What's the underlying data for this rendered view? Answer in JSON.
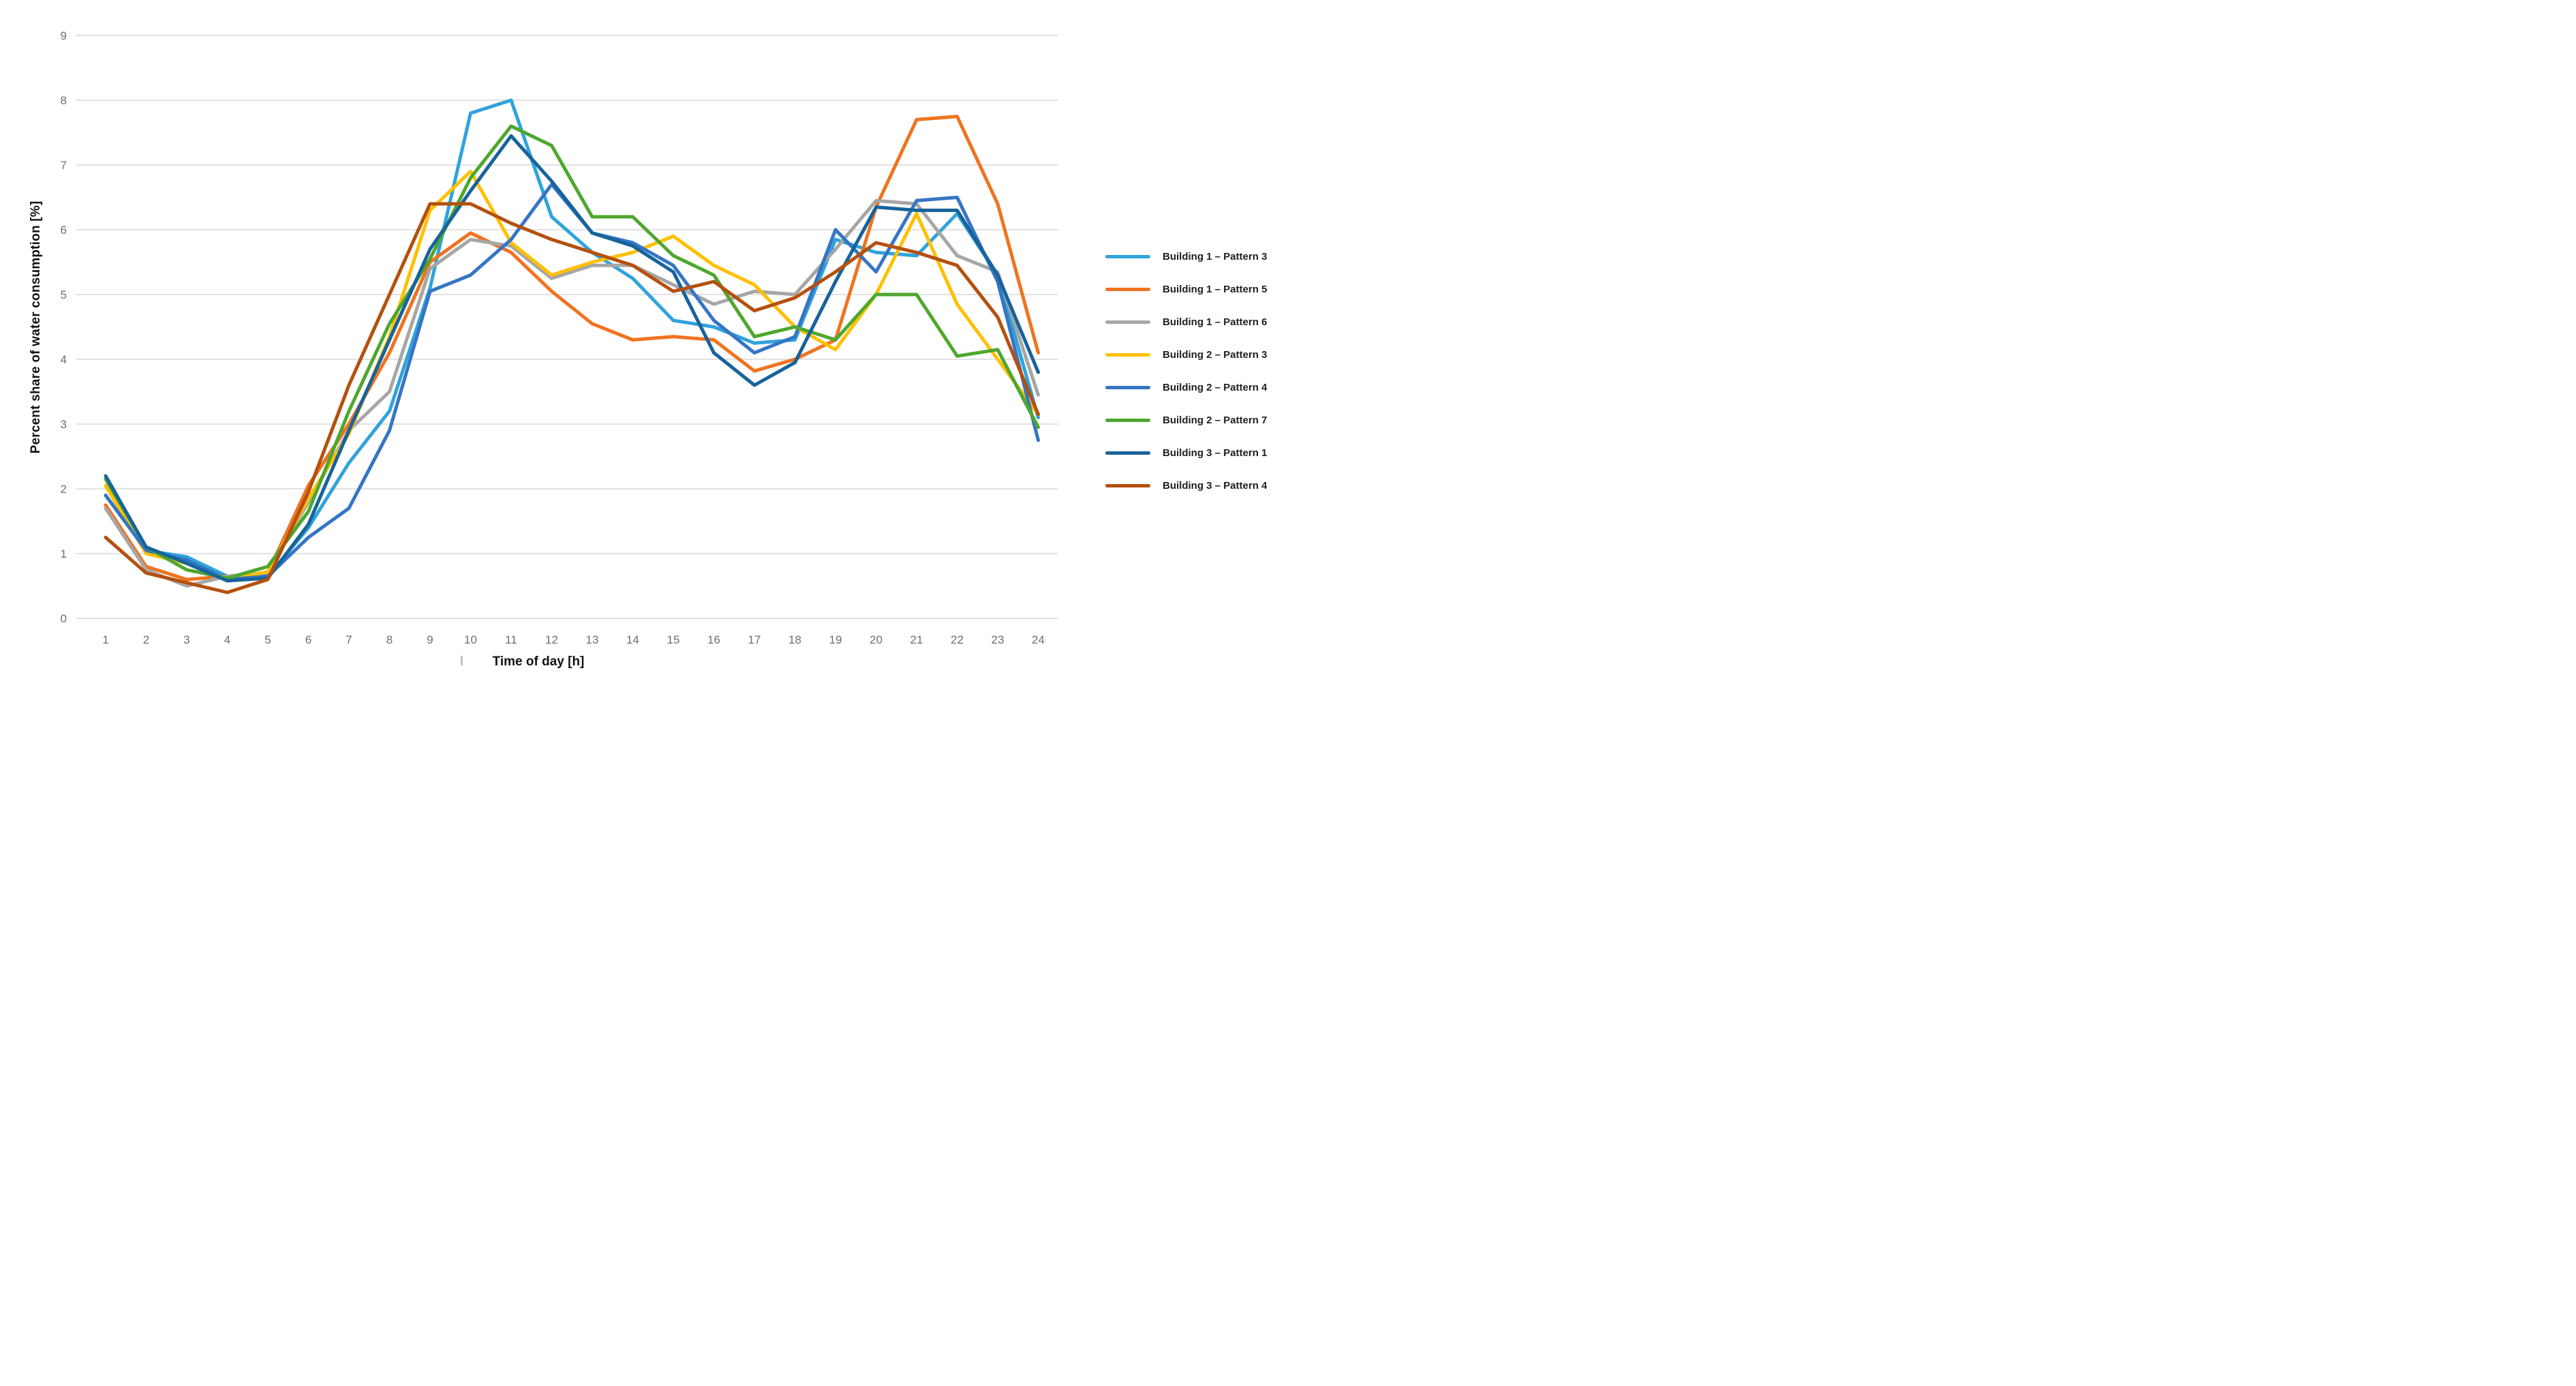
{
  "chart_data": {
    "type": "line",
    "title": "",
    "xlabel": "Time of day [h]",
    "ylabel": "Percent share of water consumption [%]",
    "x": [
      1,
      2,
      3,
      4,
      5,
      6,
      7,
      8,
      9,
      10,
      11,
      12,
      13,
      14,
      15,
      16,
      17,
      18,
      19,
      20,
      21,
      22,
      23,
      24
    ],
    "ylim": [
      0,
      9
    ],
    "y_ticks": [
      0,
      1,
      2,
      3,
      4,
      5,
      6,
      7,
      8,
      9
    ],
    "grid": "horizontal",
    "legend_position": "right",
    "series": [
      {
        "name": "Building 1 – Pattern 3",
        "color": "#2FA3DC",
        "values": [
          1.9,
          1.05,
          0.95,
          0.65,
          0.65,
          1.4,
          2.4,
          3.2,
          5.1,
          7.8,
          8.0,
          6.2,
          5.65,
          5.25,
          4.6,
          4.5,
          4.25,
          4.3,
          5.85,
          5.65,
          5.6,
          6.25,
          5.3,
          3.1
        ]
      },
      {
        "name": "Building 1 – Pattern 5",
        "color": "#F07320",
        "values": [
          1.75,
          0.8,
          0.6,
          0.65,
          0.7,
          2.05,
          3.0,
          4.1,
          5.5,
          5.95,
          5.65,
          5.05,
          4.55,
          4.3,
          4.35,
          4.3,
          3.82,
          4.0,
          4.3,
          6.35,
          7.7,
          7.75,
          6.4,
          4.1
        ]
      },
      {
        "name": "Building 1 – Pattern 6",
        "color": "#A6A6A6",
        "values": [
          1.7,
          0.75,
          0.5,
          0.65,
          0.7,
          1.8,
          2.9,
          3.5,
          5.4,
          5.85,
          5.75,
          5.25,
          5.45,
          5.45,
          5.15,
          4.85,
          5.05,
          5.0,
          5.7,
          6.45,
          6.4,
          5.6,
          5.35,
          3.45
        ]
      },
      {
        "name": "Building 2 – Pattern 3",
        "color": "#FFC000",
        "values": [
          2.05,
          1.0,
          0.85,
          0.6,
          0.72,
          1.85,
          2.85,
          4.35,
          6.3,
          6.9,
          5.8,
          5.3,
          5.5,
          5.65,
          5.9,
          5.45,
          5.15,
          4.5,
          4.15,
          5.0,
          6.25,
          4.85,
          4.0,
          3.15
        ]
      },
      {
        "name": "Building 2 – Pattern 4",
        "color": "#3575C4",
        "values": [
          1.9,
          1.05,
          0.9,
          0.6,
          0.65,
          1.25,
          1.7,
          2.9,
          5.05,
          5.3,
          5.85,
          6.7,
          5.95,
          5.8,
          5.45,
          4.6,
          4.1,
          4.35,
          6.0,
          5.35,
          6.45,
          6.5,
          5.2,
          2.75
        ]
      },
      {
        "name": "Building 2 – Pattern 7",
        "color": "#4EA72E",
        "values": [
          2.15,
          1.1,
          0.75,
          0.62,
          0.8,
          1.65,
          3.2,
          4.55,
          5.55,
          6.8,
          7.6,
          7.3,
          6.2,
          6.2,
          5.6,
          5.3,
          4.35,
          4.5,
          4.3,
          5.0,
          5.0,
          4.05,
          4.15,
          2.95
        ]
      },
      {
        "name": "Building 3 – Pattern 1",
        "color": "#17639B",
        "values": [
          2.2,
          1.1,
          0.85,
          0.58,
          0.62,
          1.45,
          2.9,
          4.3,
          5.7,
          6.6,
          7.45,
          6.75,
          5.95,
          5.75,
          5.35,
          4.1,
          3.6,
          3.95,
          5.2,
          6.35,
          6.3,
          6.3,
          5.3,
          3.8
        ]
      },
      {
        "name": "Building 3 – Pattern 4",
        "color": "#B5500E",
        "values": [
          1.25,
          0.7,
          0.55,
          0.4,
          0.6,
          1.95,
          3.6,
          5.0,
          6.4,
          6.4,
          6.1,
          5.85,
          5.65,
          5.45,
          5.05,
          5.2,
          4.75,
          4.95,
          5.35,
          5.8,
          5.65,
          5.45,
          4.65,
          3.15
        ]
      }
    ],
    "x_tick_artifact": "|"
  },
  "style_colors": {
    "gridline": "#d9d9d9",
    "tick_text": "#6e6e6e",
    "axis_title_text": "#111111",
    "background": "#ffffff"
  }
}
